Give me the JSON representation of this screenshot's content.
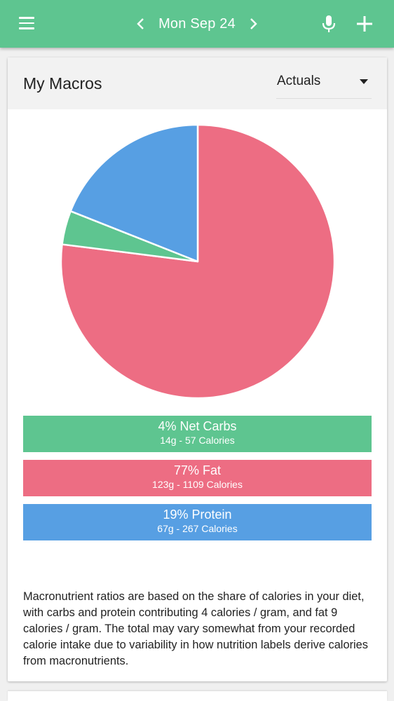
{
  "appbar": {
    "date": "Mon Sep 24",
    "colors": {
      "background": "#5ec590"
    }
  },
  "card": {
    "title": "My Macros",
    "view_select": {
      "selected": "Actuals"
    }
  },
  "chart_data": {
    "type": "pie",
    "slices": [
      {
        "label": "Net Carbs",
        "percent": 4,
        "color": "#5ec590"
      },
      {
        "label": "Fat",
        "percent": 77,
        "color": "#ed6d83"
      },
      {
        "label": "Protein",
        "percent": 19,
        "color": "#579fe3"
      }
    ]
  },
  "macros": [
    {
      "title": "4% Net Carbs",
      "detail": "14g - 57 Calories",
      "color": "#5ec590"
    },
    {
      "title": "77% Fat",
      "detail": "123g - 1109 Calories",
      "color": "#ed6d83"
    },
    {
      "title": "19% Protein",
      "detail": "67g - 267 Calories",
      "color": "#579fe3"
    }
  ],
  "footnote": "Macronutrient ratios are based on the share of calories in your diet, with carbs and protein contributing 4 calories / gram, and fat 9 calories / gram. The total may vary somewhat from your recorded calorie intake due to variability in how nutrition labels derive calories from macronutrients."
}
